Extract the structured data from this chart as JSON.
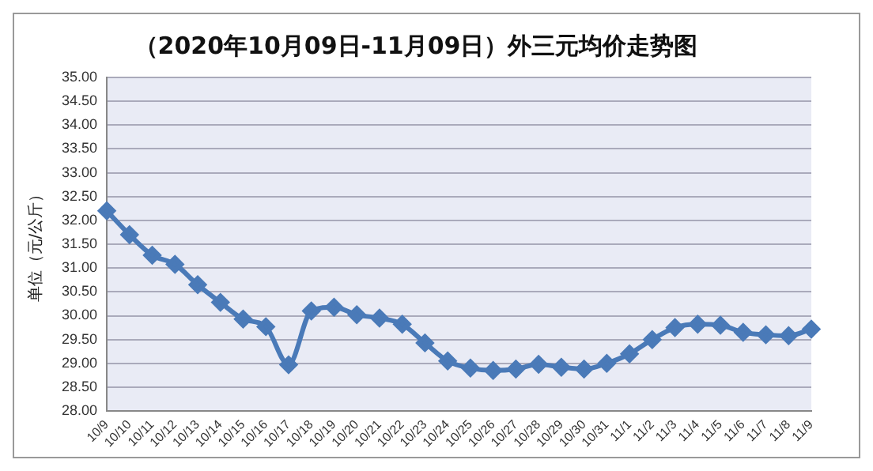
{
  "chart_data": {
    "type": "line",
    "title": "（2020年10月09日-11月09日）外三元均价走势图",
    "ylabel": "单位（元/公斤）",
    "categories": [
      "10/9",
      "10/10",
      "10/11",
      "10/12",
      "10/13",
      "10/14",
      "10/15",
      "10/16",
      "10/17",
      "10/18",
      "10/19",
      "10/20",
      "10/21",
      "10/22",
      "10/23",
      "10/24",
      "10/25",
      "10/26",
      "10/27",
      "10/28",
      "10/29",
      "10/30",
      "10/31",
      "11/1",
      "11/2",
      "11/3",
      "11/4",
      "11/5",
      "11/6",
      "11/7",
      "11/8",
      "11/9"
    ],
    "series": [
      {
        "color": "#4a7ab8",
        "values": [
          32.2,
          31.7,
          31.27,
          31.08,
          30.65,
          30.28,
          29.93,
          29.77,
          28.97,
          30.1,
          30.18,
          30.02,
          29.95,
          29.82,
          29.43,
          29.05,
          28.9,
          28.85,
          28.88,
          28.98,
          28.92,
          28.88,
          29.0,
          29.2,
          29.5,
          29.75,
          29.82,
          29.8,
          29.65,
          29.6,
          29.58,
          29.72
        ]
      }
    ],
    "ylim": [
      28,
      35
    ],
    "yticks": [
      {
        "value": 28,
        "label": "28.00"
      },
      {
        "value": 28.5,
        "label": "28.50"
      },
      {
        "value": 29,
        "label": "29.00"
      },
      {
        "value": 29.5,
        "label": "29.50"
      },
      {
        "value": 30,
        "label": "30.00"
      },
      {
        "value": 30.5,
        "label": "30.50"
      },
      {
        "value": 31,
        "label": "31.00"
      },
      {
        "value": 31.5,
        "label": "31.50"
      },
      {
        "value": 32,
        "label": "32.00"
      },
      {
        "value": 32.5,
        "label": "32.50"
      },
      {
        "value": 33,
        "label": "33.00"
      },
      {
        "value": 33.5,
        "label": "33.50"
      },
      {
        "value": 34,
        "label": "34.00"
      },
      {
        "value": 34.5,
        "label": "34.50"
      },
      {
        "value": 35,
        "label": "35.00"
      }
    ],
    "grid": "y",
    "legend": false,
    "marker": "diamond",
    "line_style": "solid"
  }
}
